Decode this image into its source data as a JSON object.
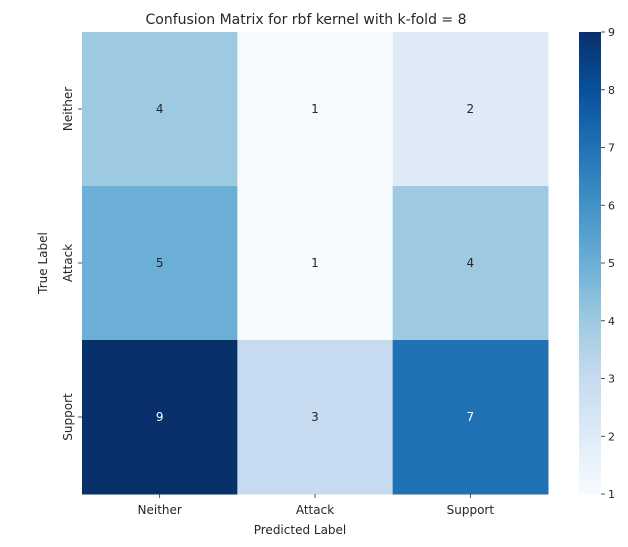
{
  "chart_data": {
    "type": "heatmap",
    "title": "Confusion Matrix for rbf kernel with k-fold = 8",
    "xlabel": "Predicted Label",
    "ylabel": "True Label",
    "x_categories": [
      "Neither",
      "Attack",
      "Support"
    ],
    "y_categories": [
      "Neither",
      "Attack",
      "Support"
    ],
    "values": [
      [
        4,
        1,
        2
      ],
      [
        5,
        1,
        4
      ],
      [
        9,
        3,
        7
      ]
    ],
    "colorbar": {
      "min": 1,
      "max": 9,
      "ticks": [
        1,
        2,
        3,
        4,
        5,
        6,
        7,
        8,
        9
      ]
    },
    "colormap": "Blues",
    "colors": {
      "low": "#f7fbff",
      "high": "#08306b"
    }
  }
}
